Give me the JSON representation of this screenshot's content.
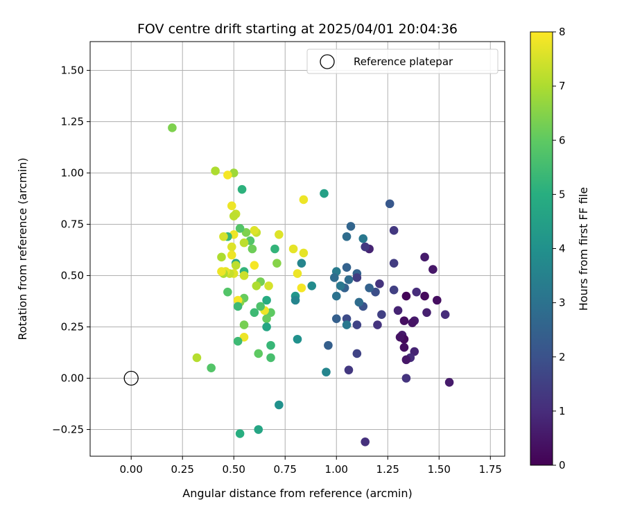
{
  "chart_data": {
    "type": "scatter",
    "title": "FOV centre drift starting at 2025/04/01 20:04:36",
    "xlabel": "Angular distance from reference (arcmin)",
    "ylabel": "Rotation from reference (arcmin)",
    "xlim": [
      -0.2,
      1.82
    ],
    "ylim": [
      -0.38,
      1.64
    ],
    "xticks": [
      "0.00",
      "0.25",
      "0.50",
      "0.75",
      "1.00",
      "1.25",
      "1.50",
      "1.75"
    ],
    "xtick_values": [
      0,
      0.25,
      0.5,
      0.75,
      1.0,
      1.25,
      1.5,
      1.75
    ],
    "yticks": [
      "−0.25",
      "0.00",
      "0.25",
      "0.50",
      "0.75",
      "1.00",
      "1.25",
      "1.50"
    ],
    "ytick_values": [
      -0.25,
      0,
      0.25,
      0.5,
      0.75,
      1.0,
      1.25,
      1.5
    ],
    "grid": true,
    "legend": {
      "position": "top-right",
      "entries": [
        "Reference platepar"
      ]
    },
    "reference_point": {
      "x": 0.0,
      "y": 0.0
    },
    "colorbar": {
      "label": "Hours from first FF file",
      "min": 0,
      "max": 8,
      "ticks": [
        "0",
        "1",
        "2",
        "3",
        "4",
        "5",
        "6",
        "7",
        "8"
      ],
      "colormap": "viridis"
    },
    "points": [
      {
        "x": 1.55,
        "y": -0.02,
        "h": 0.6
      },
      {
        "x": 1.53,
        "y": 0.31,
        "h": 1.0
      },
      {
        "x": 1.47,
        "y": 0.53,
        "h": 0.5
      },
      {
        "x": 1.49,
        "y": 0.38,
        "h": 0.3
      },
      {
        "x": 1.43,
        "y": 0.59,
        "h": 0.6
      },
      {
        "x": 1.43,
        "y": 0.4,
        "h": 0.2
      },
      {
        "x": 1.44,
        "y": 0.32,
        "h": 0.7
      },
      {
        "x": 1.39,
        "y": 0.42,
        "h": 1.0
      },
      {
        "x": 1.38,
        "y": 0.28,
        "h": 0.6
      },
      {
        "x": 1.37,
        "y": 0.27,
        "h": 0.4
      },
      {
        "x": 1.38,
        "y": 0.13,
        "h": 0.8
      },
      {
        "x": 1.36,
        "y": 0.1,
        "h": 1.0
      },
      {
        "x": 1.34,
        "y": 0.4,
        "h": 0.1
      },
      {
        "x": 1.33,
        "y": 0.28,
        "h": 0.3
      },
      {
        "x": 1.32,
        "y": 0.21,
        "h": 0.6
      },
      {
        "x": 1.33,
        "y": 0.19,
        "h": 0.2
      },
      {
        "x": 1.31,
        "y": 0.2,
        "h": 0.4
      },
      {
        "x": 1.33,
        "y": 0.15,
        "h": 0.3
      },
      {
        "x": 1.34,
        "y": 0.09,
        "h": 0.5
      },
      {
        "x": 1.34,
        "y": 0.0,
        "h": 1.2
      },
      {
        "x": 1.3,
        "y": 0.33,
        "h": 0.8
      },
      {
        "x": 1.28,
        "y": 0.72,
        "h": 1.3
      },
      {
        "x": 1.28,
        "y": 0.56,
        "h": 1.4
      },
      {
        "x": 1.28,
        "y": 0.43,
        "h": 1.5
      },
      {
        "x": 1.26,
        "y": 0.85,
        "h": 2.2
      },
      {
        "x": 1.21,
        "y": 0.46,
        "h": 1.2
      },
      {
        "x": 1.22,
        "y": 0.31,
        "h": 1.5
      },
      {
        "x": 1.2,
        "y": 0.26,
        "h": 1.2
      },
      {
        "x": 1.19,
        "y": 0.42,
        "h": 1.9
      },
      {
        "x": 1.16,
        "y": 0.44,
        "h": 2.5
      },
      {
        "x": 1.16,
        "y": 0.63,
        "h": 0.8
      },
      {
        "x": 1.14,
        "y": 0.64,
        "h": 1.3
      },
      {
        "x": 1.13,
        "y": 0.68,
        "h": 3.2
      },
      {
        "x": 1.13,
        "y": 0.35,
        "h": 2.0
      },
      {
        "x": 1.11,
        "y": 0.37,
        "h": 2.8
      },
      {
        "x": 1.1,
        "y": 0.51,
        "h": 2.5
      },
      {
        "x": 1.1,
        "y": 0.49,
        "h": 1.4
      },
      {
        "x": 1.1,
        "y": 0.26,
        "h": 1.6
      },
      {
        "x": 1.1,
        "y": 0.12,
        "h": 1.6
      },
      {
        "x": 1.14,
        "y": -0.31,
        "h": 1.1
      },
      {
        "x": 1.07,
        "y": 0.74,
        "h": 2.6
      },
      {
        "x": 1.05,
        "y": 0.69,
        "h": 2.8
      },
      {
        "x": 1.05,
        "y": 0.54,
        "h": 2.5
      },
      {
        "x": 1.06,
        "y": 0.48,
        "h": 2.8
      },
      {
        "x": 1.04,
        "y": 0.44,
        "h": 2.5
      },
      {
        "x": 1.05,
        "y": 0.29,
        "h": 1.8
      },
      {
        "x": 1.05,
        "y": 0.26,
        "h": 3.2
      },
      {
        "x": 1.06,
        "y": 0.04,
        "h": 1.3
      },
      {
        "x": 1.02,
        "y": 0.45,
        "h": 3.2
      },
      {
        "x": 1.0,
        "y": 0.52,
        "h": 3.3
      },
      {
        "x": 0.99,
        "y": 0.49,
        "h": 2.8
      },
      {
        "x": 1.0,
        "y": 0.4,
        "h": 3.0
      },
      {
        "x": 1.0,
        "y": 0.29,
        "h": 2.4
      },
      {
        "x": 0.96,
        "y": 0.16,
        "h": 2.4
      },
      {
        "x": 0.95,
        "y": 0.03,
        "h": 3.6
      },
      {
        "x": 0.94,
        "y": 0.9,
        "h": 4.5
      },
      {
        "x": 0.88,
        "y": 0.45,
        "h": 3.8
      },
      {
        "x": 0.83,
        "y": 0.56,
        "h": 3.6
      },
      {
        "x": 0.81,
        "y": 0.19,
        "h": 4.0
      },
      {
        "x": 0.8,
        "y": 0.4,
        "h": 4.2
      },
      {
        "x": 0.8,
        "y": 0.38,
        "h": 3.6
      },
      {
        "x": 0.72,
        "y": -0.13,
        "h": 4.0
      },
      {
        "x": 0.84,
        "y": 0.87,
        "h": 7.8
      },
      {
        "x": 0.84,
        "y": 0.61,
        "h": 7.7
      },
      {
        "x": 0.79,
        "y": 0.63,
        "h": 7.7
      },
      {
        "x": 0.81,
        "y": 0.51,
        "h": 7.8
      },
      {
        "x": 0.83,
        "y": 0.44,
        "h": 7.9
      },
      {
        "x": 0.72,
        "y": 0.7,
        "h": 7.6
      },
      {
        "x": 0.71,
        "y": 0.56,
        "h": 6.5
      },
      {
        "x": 0.7,
        "y": 0.63,
        "h": 5.2
      },
      {
        "x": 0.68,
        "y": 0.32,
        "h": 6.0
      },
      {
        "x": 0.68,
        "y": 0.16,
        "h": 5.3
      },
      {
        "x": 0.68,
        "y": 0.1,
        "h": 5.6
      },
      {
        "x": 0.67,
        "y": 0.45,
        "h": 7.5
      },
      {
        "x": 0.66,
        "y": 0.38,
        "h": 4.9
      },
      {
        "x": 0.66,
        "y": 0.29,
        "h": 6.1
      },
      {
        "x": 0.66,
        "y": 0.25,
        "h": 4.7
      },
      {
        "x": 0.65,
        "y": 0.33,
        "h": 7.8
      },
      {
        "x": 0.63,
        "y": 0.47,
        "h": 6.3
      },
      {
        "x": 0.63,
        "y": 0.35,
        "h": 5.7
      },
      {
        "x": 0.62,
        "y": 0.12,
        "h": 6.0
      },
      {
        "x": 0.62,
        "y": -0.25,
        "h": 4.7
      },
      {
        "x": 0.61,
        "y": 0.71,
        "h": 7.3
      },
      {
        "x": 0.6,
        "y": 0.72,
        "h": 7.6
      },
      {
        "x": 0.6,
        "y": 0.55,
        "h": 7.9
      },
      {
        "x": 0.61,
        "y": 0.45,
        "h": 7.0
      },
      {
        "x": 0.6,
        "y": 0.32,
        "h": 5.4
      },
      {
        "x": 0.59,
        "y": 0.63,
        "h": 6.2
      },
      {
        "x": 0.58,
        "y": 0.67,
        "h": 5.8
      },
      {
        "x": 0.56,
        "y": 0.71,
        "h": 6.4
      },
      {
        "x": 0.55,
        "y": 0.66,
        "h": 7.2
      },
      {
        "x": 0.55,
        "y": 0.52,
        "h": 5.2
      },
      {
        "x": 0.55,
        "y": 0.5,
        "h": 7.4
      },
      {
        "x": 0.55,
        "y": 0.39,
        "h": 6.1
      },
      {
        "x": 0.55,
        "y": 0.26,
        "h": 6.3
      },
      {
        "x": 0.55,
        "y": 0.2,
        "h": 7.8
      },
      {
        "x": 0.54,
        "y": 0.92,
        "h": 5.1
      },
      {
        "x": 0.53,
        "y": 0.73,
        "h": 5.8
      },
      {
        "x": 0.53,
        "y": 0.37,
        "h": 6.5
      },
      {
        "x": 0.52,
        "y": 0.38,
        "h": 7.9
      },
      {
        "x": 0.52,
        "y": 0.35,
        "h": 5.4
      },
      {
        "x": 0.52,
        "y": 0.18,
        "h": 5.4
      },
      {
        "x": 0.53,
        "y": -0.27,
        "h": 5.0
      },
      {
        "x": 0.51,
        "y": 0.8,
        "h": 7.3
      },
      {
        "x": 0.51,
        "y": 0.56,
        "h": 4.7
      },
      {
        "x": 0.51,
        "y": 0.55,
        "h": 7.2
      },
      {
        "x": 0.5,
        "y": 1.0,
        "h": 6.8
      },
      {
        "x": 0.5,
        "y": 0.79,
        "h": 7.2
      },
      {
        "x": 0.5,
        "y": 0.7,
        "h": 7.8
      },
      {
        "x": 0.5,
        "y": 0.51,
        "h": 7.6
      },
      {
        "x": 0.49,
        "y": 0.84,
        "h": 7.8
      },
      {
        "x": 0.49,
        "y": 0.64,
        "h": 7.6
      },
      {
        "x": 0.49,
        "y": 0.6,
        "h": 7.8
      },
      {
        "x": 0.48,
        "y": 0.51,
        "h": 7.3
      },
      {
        "x": 0.47,
        "y": 0.99,
        "h": 7.9
      },
      {
        "x": 0.47,
        "y": 0.69,
        "h": 5.3
      },
      {
        "x": 0.47,
        "y": 0.42,
        "h": 5.8
      },
      {
        "x": 0.46,
        "y": 0.52,
        "h": 7.7
      },
      {
        "x": 0.45,
        "y": 0.69,
        "h": 7.5
      },
      {
        "x": 0.45,
        "y": 0.51,
        "h": 7.0
      },
      {
        "x": 0.44,
        "y": 0.59,
        "h": 7.0
      },
      {
        "x": 0.44,
        "y": 0.52,
        "h": 7.8
      },
      {
        "x": 0.41,
        "y": 1.01,
        "h": 7.0
      },
      {
        "x": 0.39,
        "y": 0.05,
        "h": 5.8
      },
      {
        "x": 0.32,
        "y": 0.1,
        "h": 7.1
      },
      {
        "x": 0.2,
        "y": 1.22,
        "h": 6.4
      }
    ]
  }
}
